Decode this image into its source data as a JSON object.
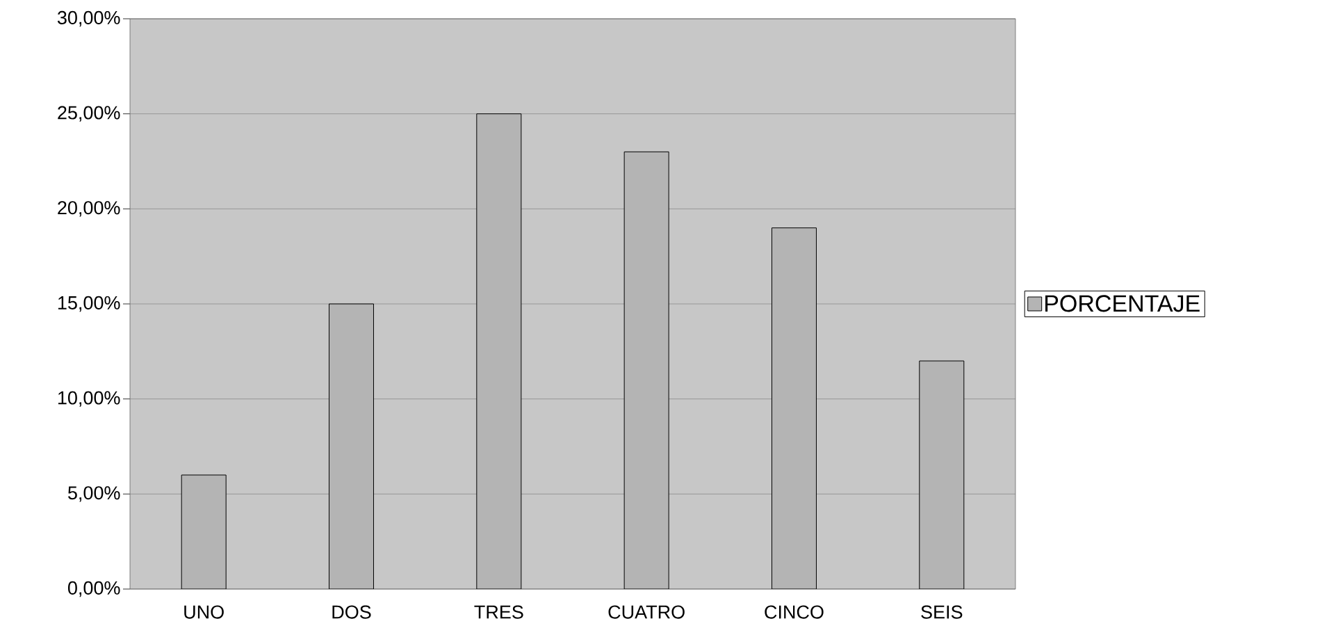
{
  "chart_data": {
    "type": "bar",
    "categories": [
      "UNO",
      "DOS",
      "TRES",
      "CUATRO",
      "CINCO",
      "SEIS"
    ],
    "series": [
      {
        "name": "PORCENTAJE",
        "color": "#b4b4b4",
        "values": [
          6,
          15,
          25,
          23,
          19,
          12
        ]
      }
    ],
    "ylim": [
      0,
      30
    ],
    "yticks": [
      {
        "value": 0,
        "label": "0,00%"
      },
      {
        "value": 5,
        "label": "5,00%"
      },
      {
        "value": 10,
        "label": "10,00%"
      },
      {
        "value": 15,
        "label": "15,00%"
      },
      {
        "value": 20,
        "label": "20,00%"
      },
      {
        "value": 25,
        "label": "25,00%"
      },
      {
        "value": 30,
        "label": "30,00%"
      }
    ],
    "grid": "y",
    "legend": "right"
  }
}
